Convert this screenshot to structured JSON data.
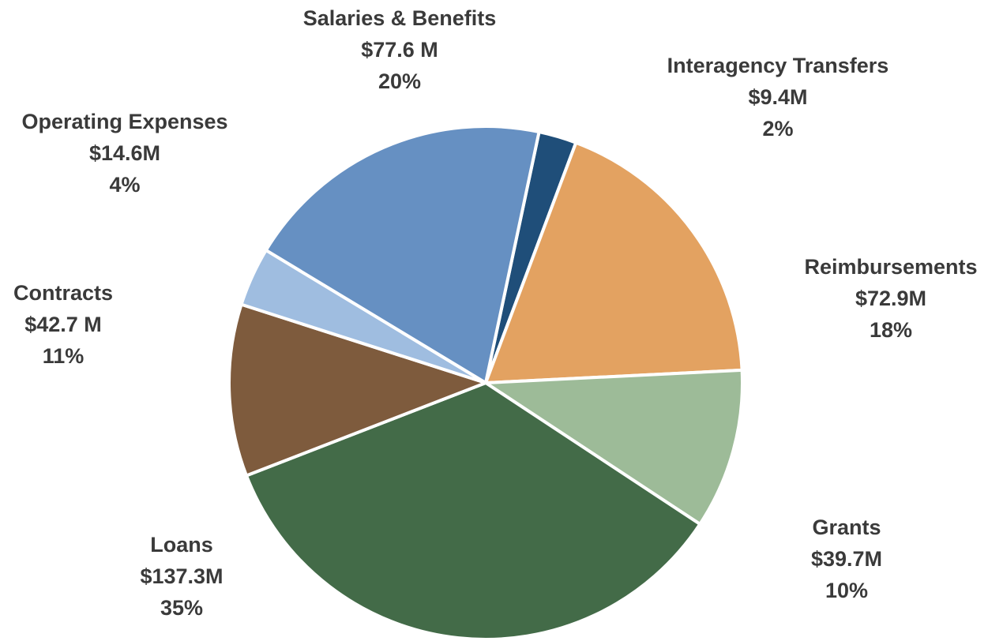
{
  "chart_data": {
    "type": "pie",
    "title": "",
    "slices": [
      {
        "name": "Interagency Transfers",
        "amount_label": "$9.4M",
        "percent_label": "2%",
        "value": 9.4,
        "color": "#1f4e79"
      },
      {
        "name": "Reimbursements",
        "amount_label": "$72.9M",
        "percent_label": "18%",
        "value": 72.9,
        "color": "#e3a261"
      },
      {
        "name": "Grants",
        "amount_label": "$39.7M",
        "percent_label": "10%",
        "value": 39.7,
        "color": "#9dbb98"
      },
      {
        "name": "Loans",
        "amount_label": "$137.3M",
        "percent_label": "35%",
        "value": 137.3,
        "color": "#436b48"
      },
      {
        "name": "Contracts",
        "amount_label": "$42.7 M",
        "percent_label": "11%",
        "value": 42.7,
        "color": "#7e5b3d"
      },
      {
        "name": "Operating Expenses",
        "amount_label": "$14.6M",
        "percent_label": "4%",
        "value": 14.6,
        "color": "#9fbde0"
      },
      {
        "name": "Salaries & Benefits",
        "amount_label": "$77.6 M",
        "percent_label": "20%",
        "value": 77.6,
        "color": "#6690c2"
      }
    ]
  }
}
